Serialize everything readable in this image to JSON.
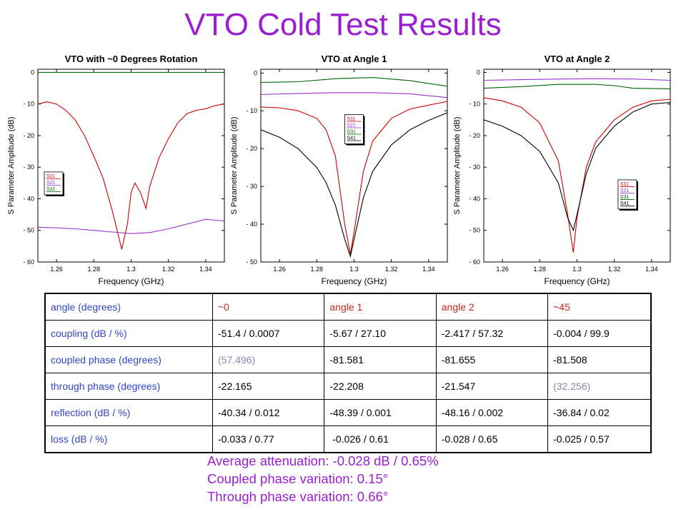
{
  "page_title": "VTO Cold Test Results",
  "chart_data": [
    {
      "type": "line",
      "title": "VTO with ~0 Degrees Rotation",
      "xlabel": "Frequency (GHz)",
      "ylabel": "S Parameter Amplitude (dB)",
      "xlim": [
        1.25,
        1.35
      ],
      "ylim": [
        -60,
        1
      ],
      "xticks": [
        1.26,
        1.28,
        1.3,
        1.32,
        1.34
      ],
      "yticks": [
        0,
        -10,
        -20,
        -30,
        -40,
        -50,
        -60
      ],
      "legend_position": "lower-left",
      "series": [
        {
          "name": "S11",
          "color": "#cc0000",
          "x": [
            1.25,
            1.255,
            1.26,
            1.265,
            1.27,
            1.275,
            1.28,
            1.285,
            1.29,
            1.295,
            1.298,
            1.3,
            1.302,
            1.305,
            1.308,
            1.31,
            1.315,
            1.32,
            1.325,
            1.33,
            1.335,
            1.34,
            1.345,
            1.35
          ],
          "y": [
            -10,
            -9.3,
            -10,
            -12,
            -15,
            -20,
            -26.5,
            -33.5,
            -44,
            -56,
            -48,
            -38,
            -35,
            -38,
            -43,
            -36,
            -27,
            -21,
            -16,
            -13,
            -12,
            -11.5,
            -10.5,
            -10
          ]
        },
        {
          "name": "S21",
          "color": "#9933cc",
          "x": [
            1.25,
            1.26,
            1.27,
            1.28,
            1.29,
            1.3,
            1.31,
            1.32,
            1.33,
            1.34,
            1.35
          ],
          "y": [
            -49,
            -49.2,
            -49.5,
            -50,
            -50.5,
            -51,
            -50.7,
            -49.5,
            -48,
            -46.5,
            -47
          ]
        },
        {
          "name": "S31",
          "color": "#006600",
          "x": [
            1.25,
            1.3,
            1.35
          ],
          "y": [
            0,
            0,
            0
          ]
        }
      ]
    },
    {
      "type": "line",
      "title": "VTO at Angle 1",
      "xlabel": "Frequency (GHz)",
      "ylabel": "S Parameter Amplitude (dB)",
      "xlim": [
        1.25,
        1.35
      ],
      "ylim": [
        -50,
        1
      ],
      "xticks": [
        1.26,
        1.28,
        1.3,
        1.32,
        1.34
      ],
      "yticks": [
        0,
        -10,
        -20,
        -30,
        -40,
        -50
      ],
      "legend_position": "upper-center",
      "series": [
        {
          "name": "S11",
          "color": "#cc0000",
          "x": [
            1.25,
            1.26,
            1.27,
            1.28,
            1.285,
            1.29,
            1.295,
            1.298,
            1.3,
            1.305,
            1.31,
            1.32,
            1.33,
            1.34,
            1.35
          ],
          "y": [
            -9,
            -9.2,
            -10,
            -12,
            -15,
            -22,
            -40,
            -48,
            -42,
            -26,
            -18,
            -12,
            -9.5,
            -8.5,
            -7.5
          ]
        },
        {
          "name": "S21",
          "color": "#9933cc",
          "x": [
            1.25,
            1.27,
            1.29,
            1.31,
            1.33,
            1.35
          ],
          "y": [
            -5.7,
            -5.4,
            -5.2,
            -5.2,
            -5.5,
            -6.5
          ]
        },
        {
          "name": "S31",
          "color": "#006600",
          "x": [
            1.25,
            1.27,
            1.29,
            1.31,
            1.33,
            1.35
          ],
          "y": [
            -2.5,
            -2.3,
            -1.5,
            -1.2,
            -2,
            -3.5
          ]
        },
        {
          "name": "S41",
          "color": "#000000",
          "x": [
            1.25,
            1.26,
            1.27,
            1.28,
            1.285,
            1.29,
            1.295,
            1.298,
            1.3,
            1.305,
            1.31,
            1.32,
            1.33,
            1.34,
            1.35
          ],
          "y": [
            -15,
            -17,
            -20,
            -25,
            -29,
            -35,
            -44,
            -48.5,
            -44,
            -33,
            -26,
            -19,
            -15,
            -12.5,
            -10.5
          ]
        }
      ]
    },
    {
      "type": "line",
      "title": "VTO at Angle 2",
      "xlabel": "Frequency (GHz)",
      "ylabel": "S Parameter Amplitude (dB)",
      "xlim": [
        1.25,
        1.35
      ],
      "ylim": [
        -60,
        1
      ],
      "xticks": [
        1.26,
        1.28,
        1.3,
        1.32,
        1.34
      ],
      "yticks": [
        0,
        -10,
        -20,
        -30,
        -40,
        -50,
        -60
      ],
      "legend_position": "lower-right",
      "series": [
        {
          "name": "S11",
          "color": "#cc0000",
          "x": [
            1.25,
            1.26,
            1.27,
            1.28,
            1.29,
            1.295,
            1.298,
            1.3,
            1.305,
            1.31,
            1.32,
            1.33,
            1.34,
            1.35
          ],
          "y": [
            -8,
            -9,
            -11,
            -16,
            -28,
            -45,
            -57,
            -46,
            -30,
            -22,
            -15,
            -11,
            -9,
            -8.5
          ]
        },
        {
          "name": "S21",
          "color": "#9933cc",
          "x": [
            1.25,
            1.27,
            1.29,
            1.31,
            1.33,
            1.35
          ],
          "y": [
            -2.5,
            -2.3,
            -2.1,
            -2,
            -2.1,
            -2.5
          ]
        },
        {
          "name": "S31",
          "color": "#006600",
          "x": [
            1.25,
            1.27,
            1.29,
            1.31,
            1.32,
            1.33,
            1.35
          ],
          "y": [
            -5,
            -4.5,
            -3.8,
            -3.8,
            -4.2,
            -5,
            -5.2
          ]
        },
        {
          "name": "S41",
          "color": "#000000",
          "x": [
            1.25,
            1.26,
            1.27,
            1.28,
            1.29,
            1.295,
            1.298,
            1.3,
            1.305,
            1.31,
            1.32,
            1.33,
            1.34,
            1.35
          ],
          "y": [
            -15,
            -17,
            -20,
            -25,
            -35,
            -46,
            -50,
            -45,
            -32,
            -24,
            -17,
            -12.5,
            -10,
            -9.5
          ]
        }
      ]
    }
  ],
  "table": {
    "rows": [
      [
        "angle (degrees)",
        "~0",
        "angle 1",
        "angle 2",
        "~45"
      ],
      [
        "coupling (dB / %)",
        "-51.4 / 0.0007",
        "-5.67 / 27.10",
        "-2.417 / 57.32",
        "-0.004 / 99.9"
      ],
      [
        "coupled phase (degrees)",
        "(57.496)",
        "-81.581",
        "-81.655",
        "-81.508"
      ],
      [
        "through phase (degrees)",
        "-22.165",
        "-22.208",
        "-21.547",
        "(32.256)"
      ],
      [
        "reflection (dB / %)",
        "-40.34 / 0.012",
        "-48.39 / 0.001",
        "-48.16 / 0.002",
        "-36.84 / 0.02"
      ],
      [
        "loss (dB / %)",
        "-0.033 / 0.77",
        " -0.026 / 0.61",
        "-0.028 / 0.65",
        "-0.025 / 0.57"
      ]
    ]
  },
  "summary": {
    "line1": "Average attenuation:  -0.028 dB / 0.65%",
    "line2": "Coupled phase variation:  0.15°",
    "line3": "Through phase variation: 0.66°"
  }
}
